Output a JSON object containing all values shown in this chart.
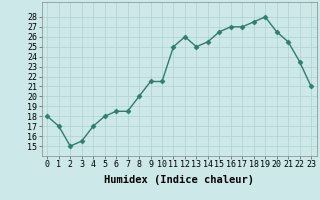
{
  "x": [
    0,
    1,
    2,
    3,
    4,
    5,
    6,
    7,
    8,
    9,
    10,
    11,
    12,
    13,
    14,
    15,
    16,
    17,
    18,
    19,
    20,
    21,
    22,
    23
  ],
  "y": [
    18,
    17,
    15,
    15.5,
    17,
    18,
    18.5,
    18.5,
    20,
    21.5,
    21.5,
    25,
    26,
    25,
    25.5,
    26.5,
    27,
    27,
    27.5,
    28,
    26.5,
    25.5,
    23.5,
    21
  ],
  "line_color": "#2e7d6e",
  "marker_color": "#2e7d6e",
  "bg_color": "#cce8e8",
  "grid_color": "#b0d0d0",
  "xlabel": "Humidex (Indice chaleur)",
  "ylim": [
    14,
    29
  ],
  "xlim_min": -0.5,
  "xlim_max": 23.5,
  "yticks": [
    15,
    16,
    17,
    18,
    19,
    20,
    21,
    22,
    23,
    24,
    25,
    26,
    27,
    28
  ],
  "xticks": [
    0,
    1,
    2,
    3,
    4,
    5,
    6,
    7,
    8,
    9,
    10,
    11,
    12,
    13,
    14,
    15,
    16,
    17,
    18,
    19,
    20,
    21,
    22,
    23
  ],
  "xlabel_fontsize": 7.5,
  "tick_fontsize": 6,
  "line_width": 1.0,
  "marker_size": 2.5
}
